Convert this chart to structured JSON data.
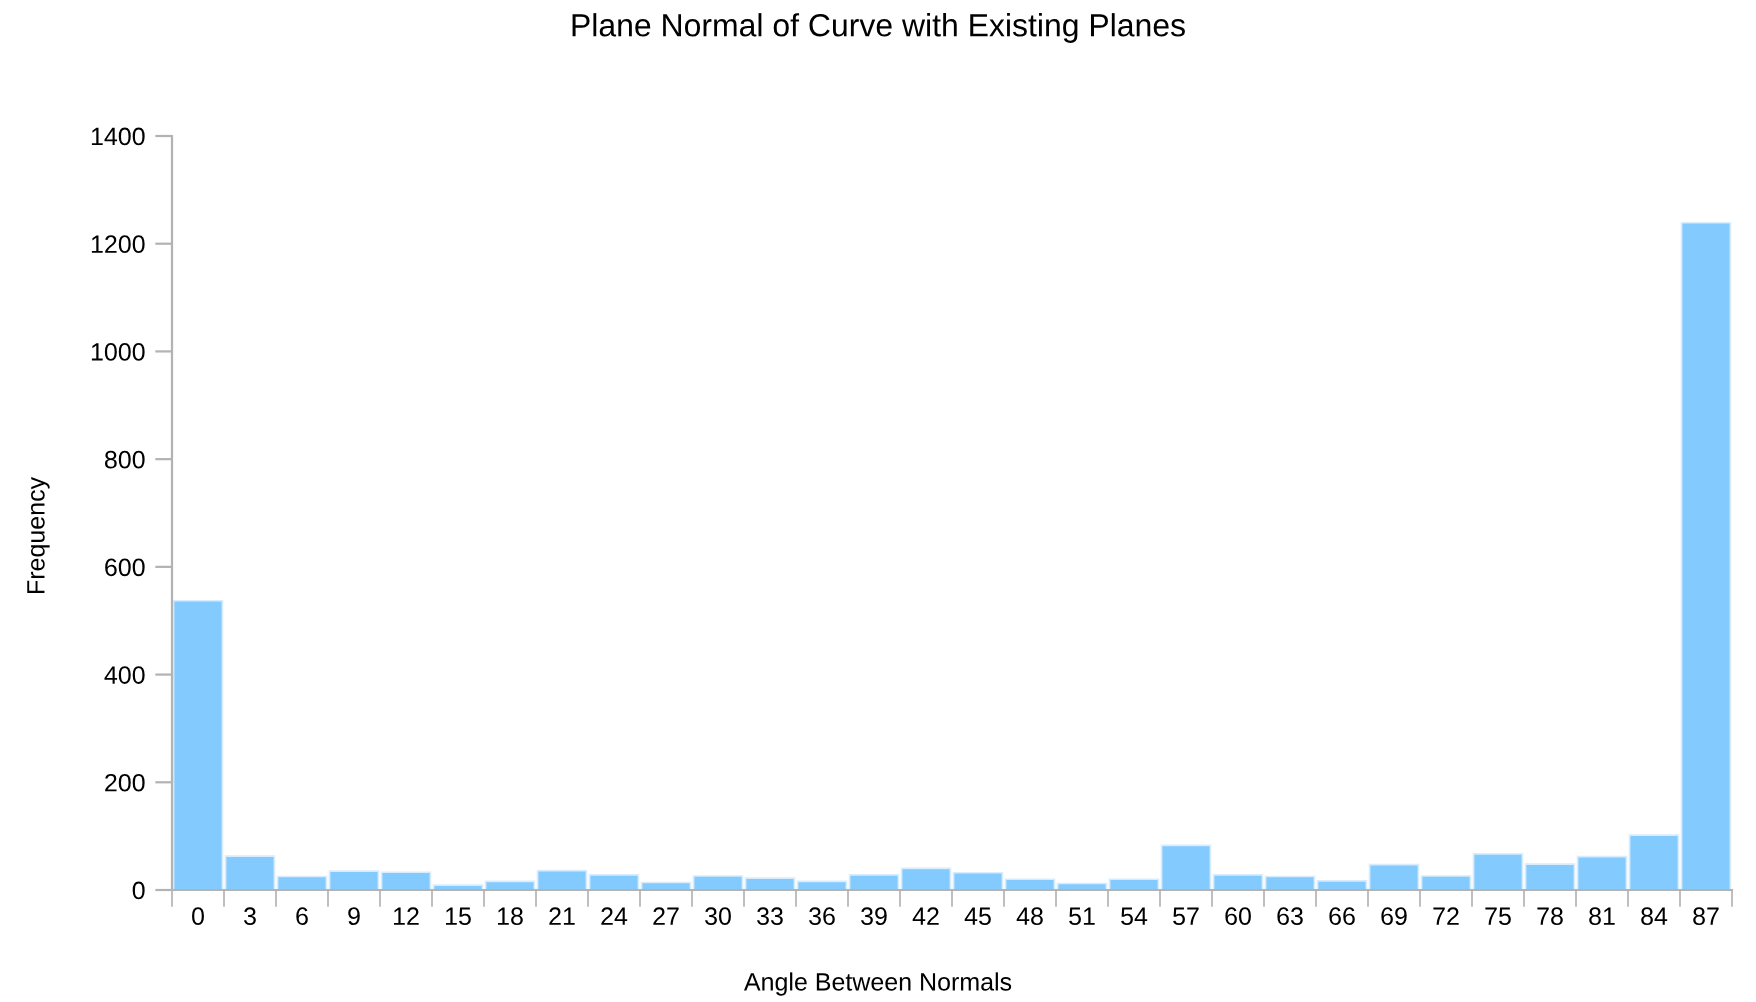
{
  "chart_data": {
    "type": "bar",
    "title": "Plane Normal of Curve with Existing Planes",
    "xlabel": "Angle Between Normals",
    "ylabel": "Frequency",
    "categories": [
      "0",
      "3",
      "6",
      "9",
      "12",
      "15",
      "18",
      "21",
      "24",
      "27",
      "30",
      "33",
      "36",
      "39",
      "42",
      "45",
      "48",
      "51",
      "54",
      "57",
      "60",
      "63",
      "66",
      "69",
      "72",
      "75",
      "78",
      "81",
      "84",
      "87"
    ],
    "values": [
      537,
      63,
      25,
      35,
      33,
      9,
      16,
      36,
      28,
      14,
      26,
      22,
      16,
      28,
      40,
      32,
      20,
      12,
      20,
      83,
      28,
      25,
      17,
      47,
      26,
      67,
      48,
      62,
      102,
      1239
    ],
    "color": "#83caff",
    "ylim": [
      0,
      1400
    ],
    "yticks": [
      0,
      200,
      400,
      600,
      800,
      1000,
      1200,
      1400
    ],
    "grid": false,
    "legend": false
  }
}
